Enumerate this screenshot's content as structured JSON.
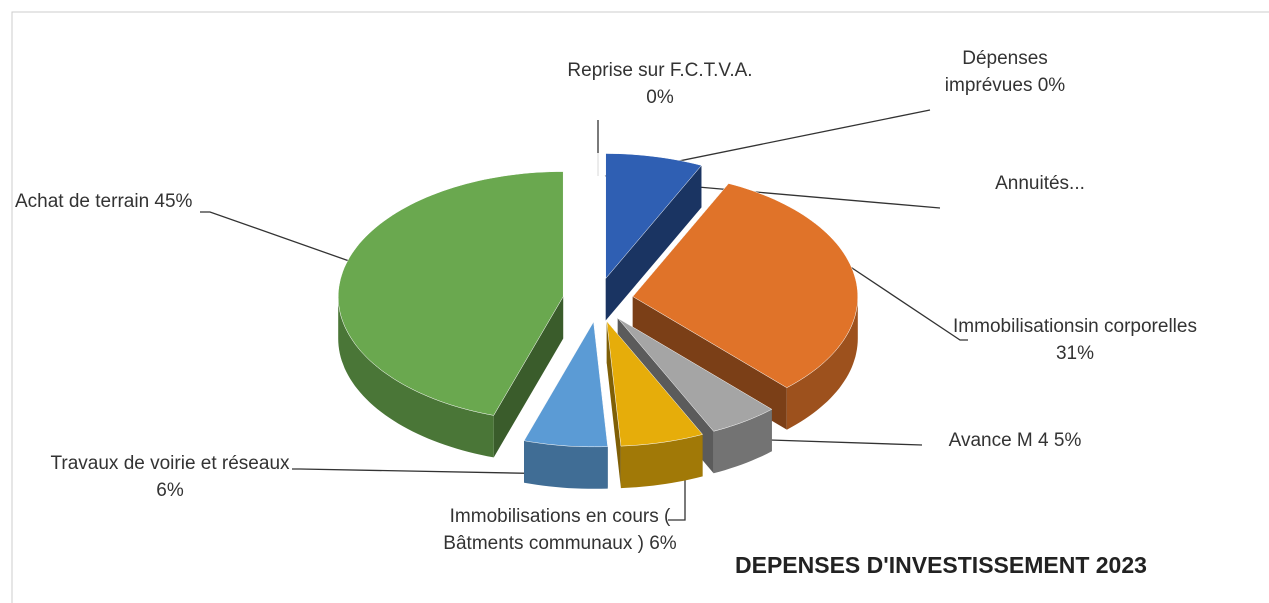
{
  "chart_data": {
    "type": "pie3d",
    "title": "DEPENSES D'INVESTISSEMENT 2023",
    "categories": [
      "Reprise sur F.C.T.V.A.",
      "Dépenses imprévues",
      "Annuités...",
      "Immobilisationsin corporelles",
      "Avance M 4",
      "Immobilisations en cours ( Bâtments communaux )",
      "Travaux de voirie et réseaux",
      "Achat de terrain"
    ],
    "values": [
      0,
      0,
      7,
      31,
      5,
      6,
      6,
      45
    ],
    "value_labels": [
      "0%",
      "0%",
      null,
      "31%",
      "5%",
      "6%",
      "6%",
      "45%"
    ],
    "colors": [
      "#4472c4",
      "#a5a5a5",
      "#2f5fb3",
      "#e07329",
      "#a5a5a5",
      "#e6ad0a",
      "#5b9bd5",
      "#6aa84f"
    ]
  }
}
